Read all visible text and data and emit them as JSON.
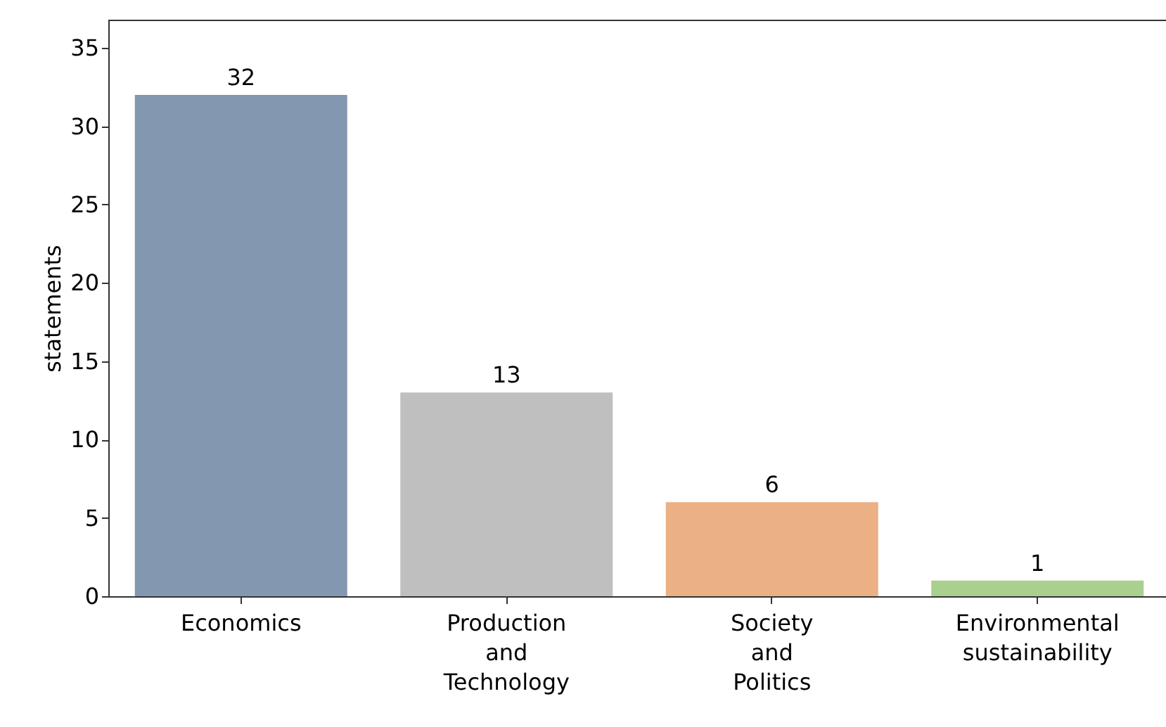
{
  "chart_data": {
    "type": "bar",
    "ylabel": "statements",
    "categories": [
      "Economics",
      "Production\nand\nTechnology",
      "Society\nand\nPolitics",
      "Environmental\nsustainability"
    ],
    "values": [
      32,
      13,
      6,
      1
    ],
    "colors": [
      "#8497b0",
      "#bfbfbf",
      "#ebb084",
      "#a9d08e"
    ],
    "ylim": [
      0,
      36.8
    ],
    "yticks": [
      0,
      5,
      10,
      15,
      20,
      25,
      30,
      35
    ],
    "data_labels": true,
    "grid": false
  }
}
